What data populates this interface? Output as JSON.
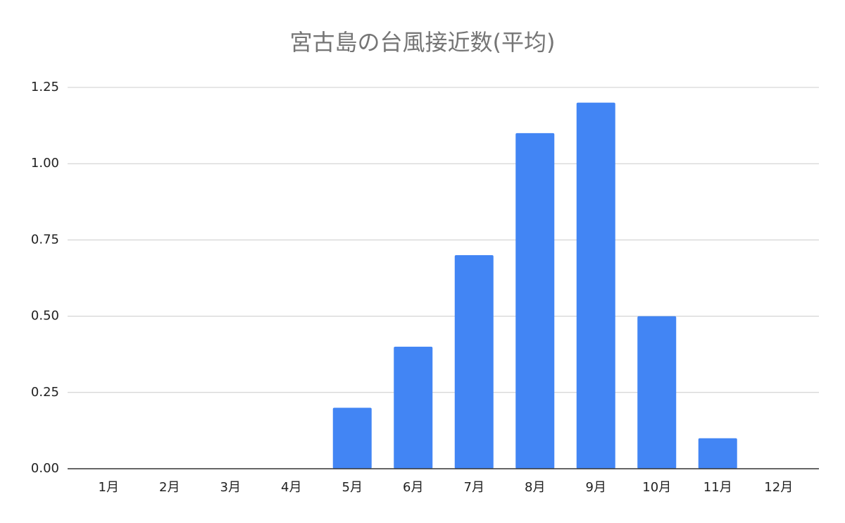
{
  "chart_data": {
    "type": "bar",
    "title": "宮古島の台風接近数(平均)",
    "categories": [
      "1月",
      "2月",
      "3月",
      "4月",
      "5月",
      "6月",
      "7月",
      "8月",
      "9月",
      "10月",
      "11月",
      "12月"
    ],
    "values": [
      0,
      0,
      0,
      0,
      0.2,
      0.4,
      0.7,
      1.1,
      1.2,
      0.5,
      0.1,
      0
    ],
    "color": "#4285f4",
    "ylim": [
      0,
      1.25
    ],
    "yticks": [
      {
        "value": 0,
        "label": "0.00"
      },
      {
        "value": 0.25,
        "label": "0.25"
      },
      {
        "value": 0.5,
        "label": "0.50"
      },
      {
        "value": 0.75,
        "label": "0.75"
      },
      {
        "value": 1,
        "label": "1.00"
      },
      {
        "value": 1.25,
        "label": "1.25"
      }
    ],
    "grid": true
  }
}
